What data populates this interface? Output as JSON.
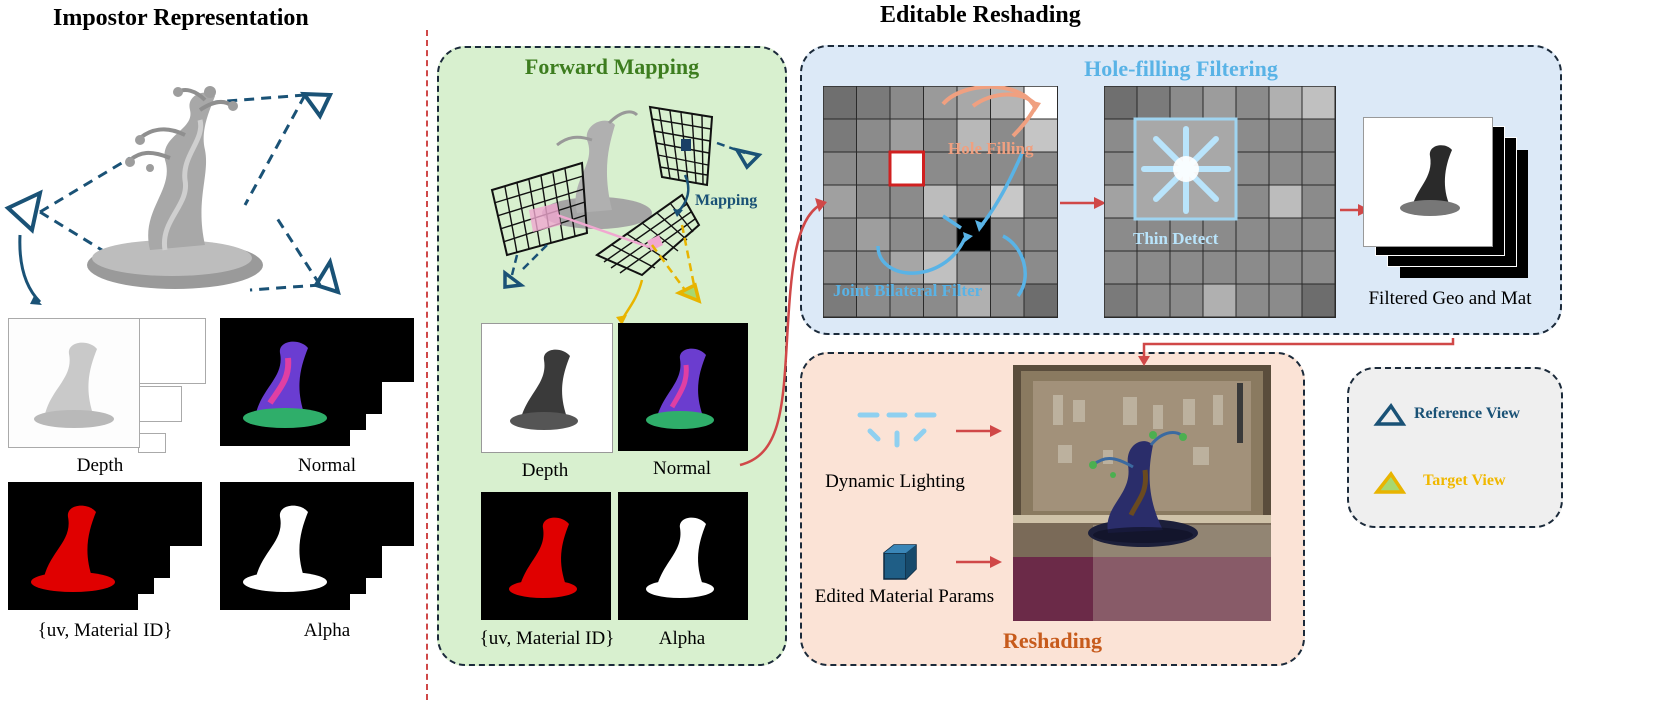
{
  "left": {
    "title": "Impostor Representation",
    "labels": {
      "depth": "Depth",
      "normal": "Normal",
      "uv": "{uv, Material ID}",
      "alpha": "Alpha"
    }
  },
  "right_title": "Editable Reshading",
  "forward": {
    "title": "Forward Mapping",
    "mapping": "Mapping",
    "labels": {
      "depth": "Depth",
      "normal": "Normal",
      "uv": "{uv, Material ID}",
      "alpha": "Alpha"
    }
  },
  "hole": {
    "title": "Hole-filling Filtering",
    "hole_filling": "Hole Filling",
    "joint_bilateral": "Joint Bilateral Filter",
    "thin_detect": "Thin Detect",
    "filtered": "Filtered Geo and Mat"
  },
  "reshade": {
    "title": "Reshading",
    "dynamic_lighting": "Dynamic Lighting",
    "edited_material": "Edited Material Params"
  },
  "legend": {
    "reference": "Reference View",
    "target": "Target View"
  },
  "colors": {
    "forward_bg": "#d8f0cf",
    "forward_title": "#3d7d1f",
    "hole_bg": "#dce9f7",
    "hole_title": "#59b3e6",
    "reshade_bg": "#fbe3d6",
    "reshade_title": "#c75b1c",
    "legend_bg": "#efefef",
    "ref_color": "#1a5276",
    "target_color": "#f0b800",
    "arrow_red": "#d04848",
    "separator": "#d04848"
  }
}
